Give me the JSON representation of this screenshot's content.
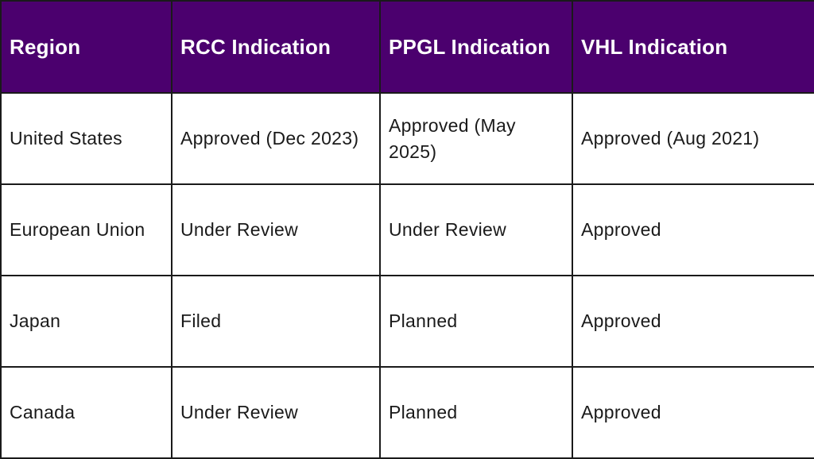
{
  "table": {
    "headers": [
      "Region",
      "RCC Indication",
      "PPGL Indication",
      "VHL Indication"
    ],
    "rows": [
      [
        "United States",
        "Approved (Dec 2023)",
        "Approved (May 2025)",
        "Approved (Aug 2021)"
      ],
      [
        "European Union",
        "Under Review",
        "Under Review",
        "Approved"
      ],
      [
        "Japan",
        "Filed",
        "Planned",
        "Approved"
      ],
      [
        "Canada",
        "Under Review",
        "Planned",
        "Approved"
      ]
    ]
  },
  "colors": {
    "header_bg": "#4b006e",
    "header_text": "#ffffff",
    "border": "#1a1a1a",
    "cell_text": "#1a1a1a"
  }
}
